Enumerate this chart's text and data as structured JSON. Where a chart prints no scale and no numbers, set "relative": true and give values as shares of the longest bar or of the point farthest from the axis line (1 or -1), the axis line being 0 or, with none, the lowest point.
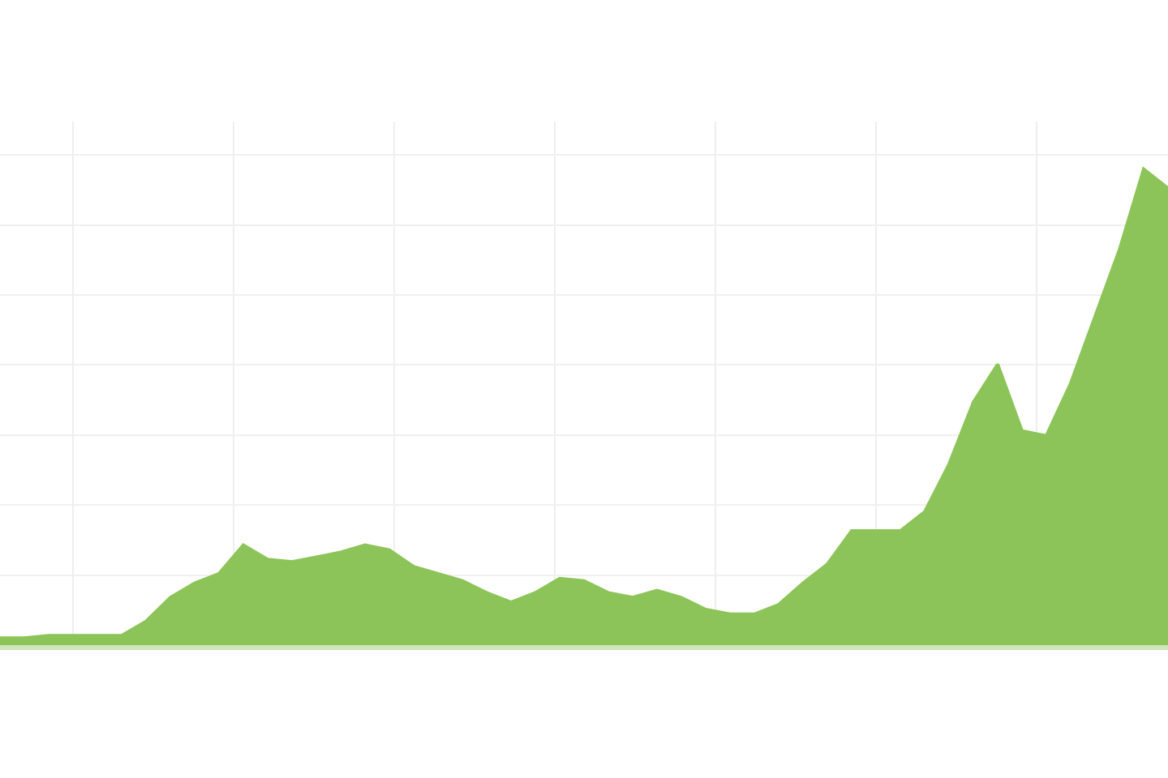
{
  "chart_data": {
    "type": "area",
    "relative": true,
    "grid": true,
    "marker": "none",
    "line_style": "solid",
    "categories": [
      null,
      null,
      null,
      null,
      null,
      null,
      null,
      null,
      null,
      null,
      null,
      null,
      null,
      null,
      null,
      null,
      null,
      null,
      null,
      null,
      null,
      null,
      null,
      null,
      null,
      null,
      null,
      null,
      null,
      null,
      null,
      null,
      null,
      null,
      null,
      null,
      null,
      null,
      null,
      null,
      null,
      null,
      null,
      null,
      null,
      null,
      null,
      null,
      null
    ],
    "series": [
      {
        "color": "#8cc459",
        "values": [
          0.015,
          0.015,
          0.02,
          0.02,
          0.02,
          0.02,
          0.05,
          0.1,
          0.13,
          0.15,
          0.21,
          0.18,
          0.175,
          0.185,
          0.195,
          0.21,
          0.2,
          0.165,
          0.15,
          0.135,
          0.11,
          0.09,
          0.11,
          0.14,
          0.135,
          0.11,
          0.1,
          0.115,
          0.1,
          0.075,
          0.065,
          0.065,
          0.085,
          0.13,
          0.17,
          0.24,
          0.24,
          0.24,
          0.28,
          0.38,
          0.51,
          0.59,
          0.45,
          0.44,
          0.55,
          0.69,
          0.83,
          1.0,
          0.96
        ]
      }
    ]
  }
}
